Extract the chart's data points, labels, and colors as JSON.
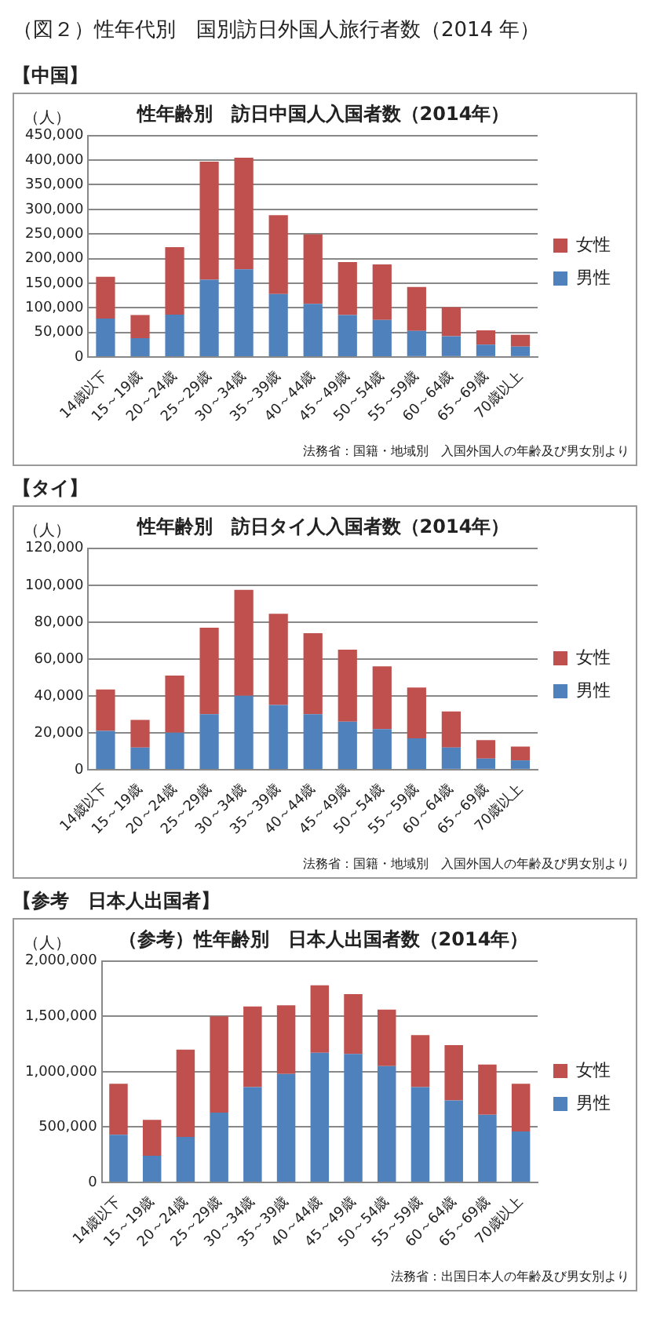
{
  "chart_data": [
    {
      "type": "other",
      "title": "（図２）性年代別　国別訪日外国人旅行者数（2014 年）"
    },
    {
      "type": "bar",
      "subtitle": "【中国】",
      "title": "性年齢別　訪日中国人入国者数（2014年）",
      "ylabel": "（人）",
      "stacked": true,
      "legend": "right",
      "grid": "y",
      "categories": [
        "14歳以下",
        "15～19歳",
        "20～24歳",
        "25～29歳",
        "30～34歳",
        "35～39歳",
        "40～44歳",
        "45～49歳",
        "50～54歳",
        "55～59歳",
        "60～64歳",
        "65～69歳",
        "70歳以上"
      ],
      "series": [
        {
          "name": "男性",
          "color": "#4f81bd",
          "values": [
            78000,
            38000,
            86000,
            157000,
            178000,
            128000,
            108000,
            85000,
            75000,
            53000,
            42000,
            25000,
            21000
          ]
        },
        {
          "name": "女性",
          "color": "#c0504d",
          "values": [
            85000,
            47000,
            137000,
            240000,
            227000,
            160000,
            141000,
            108000,
            113000,
            89000,
            59000,
            29000,
            24000
          ]
        }
      ],
      "ylim": [
        0,
        450000
      ],
      "yticks": [
        {
          "value": 0,
          "label": "0"
        },
        {
          "value": 50000,
          "label": "50,000"
        },
        {
          "value": 100000,
          "label": "100,000"
        },
        {
          "value": 150000,
          "label": "150,000"
        },
        {
          "value": 200000,
          "label": "200,000"
        },
        {
          "value": 250000,
          "label": "250,000"
        },
        {
          "value": 300000,
          "label": "300,000"
        },
        {
          "value": 350000,
          "label": "350,000"
        },
        {
          "value": 400000,
          "label": "400,000"
        },
        {
          "value": 450000,
          "label": "450,000"
        }
      ],
      "annotations": [
        "法務省：国籍・地域別　入国外国人の年齢及び男女別より"
      ]
    },
    {
      "type": "bar",
      "subtitle": "【タイ】",
      "title": "性年齢別　訪日タイ人入国者数（2014年）",
      "ylabel": "（人）",
      "stacked": true,
      "legend": "right",
      "grid": "y",
      "categories": [
        "14歳以下",
        "15～19歳",
        "20～24歳",
        "25～29歳",
        "30～34歳",
        "35～39歳",
        "40～44歳",
        "45～49歳",
        "50～54歳",
        "55～59歳",
        "60～64歳",
        "65～69歳",
        "70歳以上"
      ],
      "series": [
        {
          "name": "男性",
          "color": "#4f81bd",
          "values": [
            21000,
            12000,
            20000,
            30000,
            40000,
            35000,
            30000,
            26000,
            22000,
            17000,
            12000,
            6000,
            5000
          ]
        },
        {
          "name": "女性",
          "color": "#c0504d",
          "values": [
            22500,
            15000,
            31000,
            47000,
            57500,
            49500,
            44000,
            39000,
            34000,
            27500,
            19500,
            10000,
            7500
          ]
        }
      ],
      "ylim": [
        0,
        120000
      ],
      "yticks": [
        {
          "value": 0,
          "label": "0"
        },
        {
          "value": 20000,
          "label": "20,000"
        },
        {
          "value": 40000,
          "label": "40,000"
        },
        {
          "value": 60000,
          "label": "60,000"
        },
        {
          "value": 80000,
          "label": "80,000"
        },
        {
          "value": 100000,
          "label": "100,000"
        },
        {
          "value": 120000,
          "label": "120,000"
        }
      ],
      "annotations": [
        "法務省：国籍・地域別　入国外国人の年齢及び男女別より"
      ]
    },
    {
      "type": "bar",
      "subtitle": "【参考　日本人出国者】",
      "title": "（参考）性年齢別　日本人出国者数（2014年）",
      "ylabel": "（人）",
      "stacked": true,
      "legend": "right",
      "grid": "y",
      "categories": [
        "14歳以下",
        "15～19歳",
        "20～24歳",
        "25～29歳",
        "30～34歳",
        "35～39歳",
        "40～44歳",
        "45～49歳",
        "50～54歳",
        "55～59歳",
        "60～64歳",
        "65～69歳",
        "70歳以上"
      ],
      "series": [
        {
          "name": "男性",
          "color": "#4f81bd",
          "values": [
            430000,
            240000,
            410000,
            630000,
            860000,
            980000,
            1170000,
            1160000,
            1050000,
            860000,
            740000,
            610000,
            460000
          ]
        },
        {
          "name": "女性",
          "color": "#c0504d",
          "values": [
            460000,
            325000,
            790000,
            870000,
            730000,
            620000,
            610000,
            540000,
            510000,
            470000,
            500000,
            455000,
            430000
          ]
        }
      ],
      "ylim": [
        0,
        2000000
      ],
      "yticks": [
        {
          "value": 0,
          "label": "0"
        },
        {
          "value": 500000,
          "label": "500,000"
        },
        {
          "value": 1000000,
          "label": "1,000,000"
        },
        {
          "value": 1500000,
          "label": "1,500,000"
        },
        {
          "value": 2000000,
          "label": "2,000,000"
        }
      ],
      "annotations": [
        "法務省：出国日本人の年齢及び男女別より"
      ]
    }
  ]
}
